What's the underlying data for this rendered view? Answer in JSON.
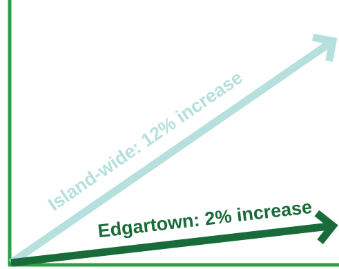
{
  "chart_data": {
    "type": "line",
    "title": "",
    "xlabel": "",
    "ylabel": "",
    "grid": false,
    "legend": "none",
    "series": [
      {
        "name": "Island-wide: 12% increase",
        "values": [
          0,
          12
        ],
        "color": "#b6e0dd"
      },
      {
        "name": "Edgartown: 2% increase",
        "values": [
          0,
          2
        ],
        "color": "#1a6b3a"
      }
    ],
    "ylim": [
      0,
      14
    ],
    "axis_color": "#2e9e48",
    "style": "arrows"
  }
}
